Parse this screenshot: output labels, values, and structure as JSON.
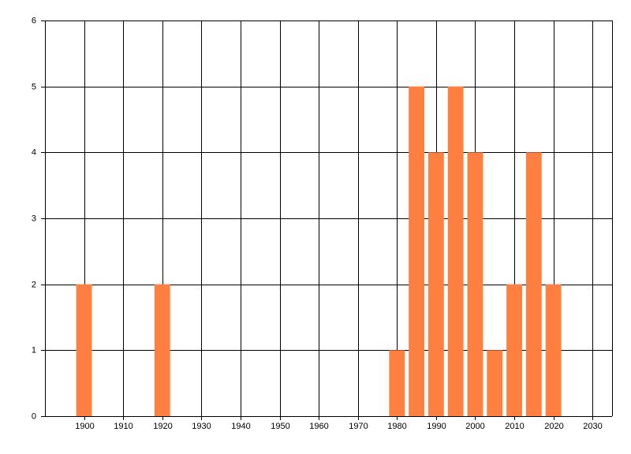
{
  "chart_data": {
    "type": "bar",
    "x": [
      1900,
      1920,
      1980,
      1985,
      1990,
      1995,
      2000,
      2005,
      2010,
      2015,
      2020
    ],
    "values": [
      2,
      2,
      1,
      5,
      4,
      5,
      4,
      1,
      2,
      4,
      2
    ],
    "color": "#ff7f40",
    "bar_width": 4,
    "xlim": [
      1890,
      2035
    ],
    "xticks": [
      1900,
      1910,
      1920,
      1930,
      1940,
      1950,
      1960,
      1970,
      1980,
      1990,
      2000,
      2010,
      2020,
      2030
    ],
    "ylim": [
      0,
      6
    ],
    "yticks": [
      0,
      1,
      2,
      3,
      4,
      5,
      6
    ],
    "grid": true
  }
}
